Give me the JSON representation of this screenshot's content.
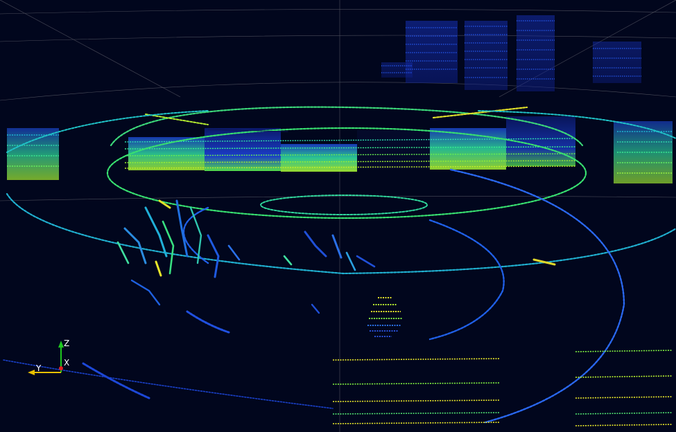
{
  "viewer": {
    "background_color": "#01061d",
    "grid_color": "#5a5a66",
    "colormap": [
      "#1626a8",
      "#1f52d6",
      "#1f8fe0",
      "#19c8c8",
      "#2fe07a",
      "#7cf02a",
      "#e8e62a"
    ]
  },
  "axes": {
    "z_label": "Z",
    "x_label": "X",
    "y_label": "Y",
    "z_color": "#1ec81e",
    "x_color": "#e02020",
    "y_color": "#e8c000"
  }
}
